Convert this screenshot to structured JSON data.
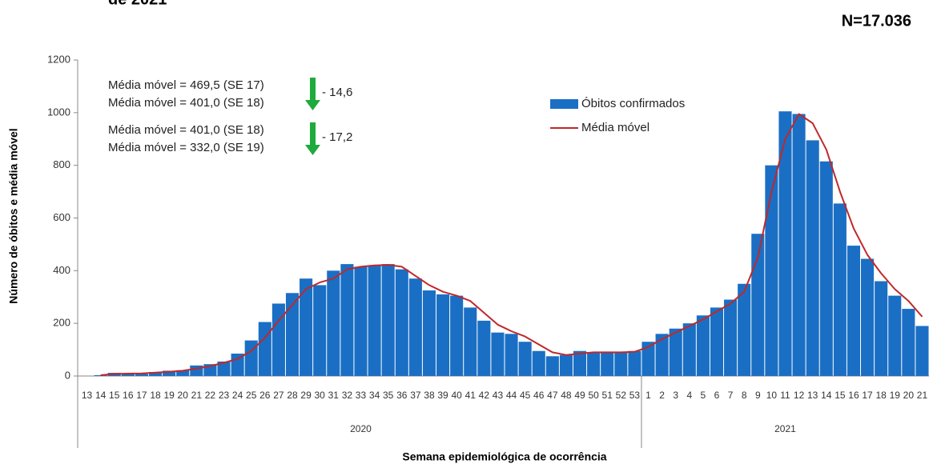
{
  "chart_data": {
    "type": "bar_line",
    "title": "de 2021",
    "subtitle": "N=17.036",
    "y_label": "Número de óbitos e média móvel",
    "x_label": "Semana epidemiológica de ocorrência",
    "year_labels": [
      "2020",
      "2021"
    ],
    "categories": [
      "13",
      "14",
      "15",
      "16",
      "17",
      "18",
      "19",
      "20",
      "21",
      "22",
      "23",
      "24",
      "25",
      "26",
      "27",
      "28",
      "29",
      "30",
      "31",
      "32",
      "33",
      "34",
      "35",
      "36",
      "37",
      "38",
      "39",
      "40",
      "41",
      "42",
      "43",
      "44",
      "45",
      "46",
      "47",
      "48",
      "49",
      "50",
      "51",
      "52",
      "53",
      "1",
      "2",
      "3",
      "4",
      "5",
      "6",
      "7",
      "8",
      "9",
      "10",
      "11",
      "12",
      "13",
      "14",
      "15",
      "16",
      "17",
      "18",
      "19",
      "20",
      "21"
    ],
    "series": [
      {
        "name": "Óbitos confirmados",
        "type": "bar",
        "color": "#1a6fc4",
        "values": [
          0,
          3,
          12,
          10,
          8,
          15,
          20,
          22,
          40,
          45,
          55,
          85,
          135,
          205,
          275,
          315,
          370,
          345,
          400,
          425,
          415,
          420,
          425,
          405,
          370,
          325,
          310,
          305,
          260,
          210,
          165,
          160,
          130,
          95,
          75,
          80,
          95,
          90,
          90,
          90,
          95,
          130,
          160,
          180,
          200,
          230,
          260,
          290,
          350,
          540,
          800,
          1005,
          995,
          895,
          815,
          655,
          495,
          445,
          360,
          305,
          255,
          190
        ]
      },
      {
        "name": "Média móvel",
        "type": "line",
        "color": "#c0282a",
        "values": [
          null,
          3,
          8,
          9,
          10,
          13,
          16,
          20,
          28,
          38,
          50,
          65,
          95,
          145,
          210,
          270,
          330,
          355,
          370,
          405,
          415,
          420,
          422,
          415,
          380,
          345,
          320,
          305,
          285,
          240,
          195,
          170,
          150,
          120,
          90,
          80,
          85,
          90,
          90,
          90,
          92,
          110,
          140,
          165,
          190,
          215,
          245,
          275,
          320,
          450,
          700,
          900,
          995,
          960,
          860,
          700,
          560,
          460,
          390,
          330,
          285,
          225
        ]
      }
    ],
    "ylim": [
      0,
      1200
    ],
    "yticks": [
      0,
      200,
      400,
      600,
      800,
      1000,
      1200
    ],
    "grid": false,
    "annotations": [
      {
        "lines": [
          "Média móvel = 469,5 (SE 17)",
          "Média móvel = 401,0 (SE 18)"
        ],
        "change": "- 14,6"
      },
      {
        "lines": [
          "Média móvel = 401,0 (SE 18)",
          "Média móvel = 332,0 (SE 19)"
        ],
        "change": "- 17,2"
      }
    ]
  }
}
